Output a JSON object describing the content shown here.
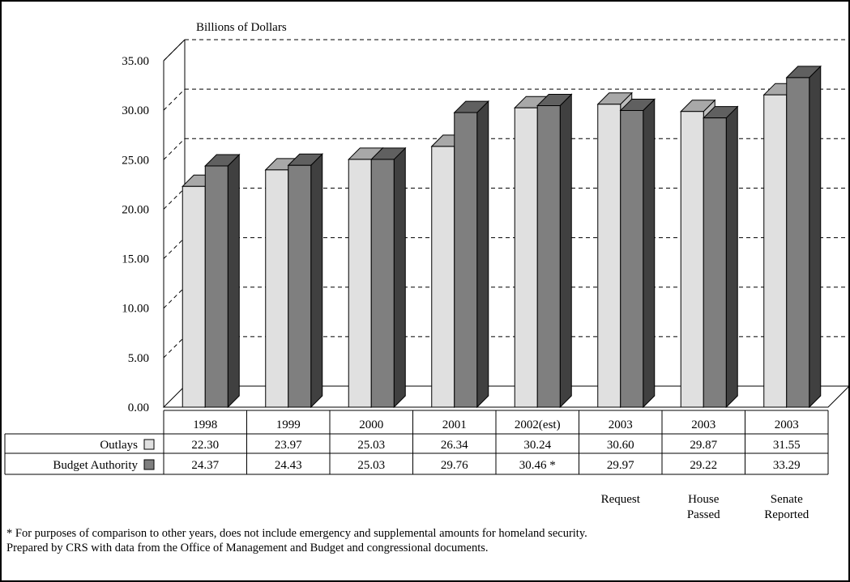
{
  "chart_data": {
    "type": "bar",
    "title": "",
    "ylabel": "Billions of Dollars",
    "xlabel": "",
    "ylim": [
      0,
      35
    ],
    "yticks": [
      "0.00",
      "5.00",
      "10.00",
      "15.00",
      "20.00",
      "25.00",
      "30.00",
      "35.00"
    ],
    "grid": true,
    "three_d": true,
    "categories": [
      "1998",
      "1999",
      "2000",
      "2001",
      "2002(est)",
      "2003",
      "2003",
      "2003"
    ],
    "sublabels": [
      "",
      "",
      "",
      "",
      "",
      "Request",
      "House\nPassed",
      "Senate\nReported"
    ],
    "series": [
      {
        "name": "Outlays",
        "values": [
          22.3,
          23.97,
          25.03,
          26.34,
          30.24,
          30.6,
          29.87,
          31.55
        ],
        "labels": [
          "22.30",
          "23.97",
          "25.03",
          "26.34",
          "30.24",
          "30.60",
          "29.87",
          "31.55"
        ],
        "color": "#e0e0e0"
      },
      {
        "name": "Budget Authority",
        "values": [
          24.37,
          24.43,
          25.03,
          29.76,
          30.46,
          29.97,
          29.22,
          33.29
        ],
        "labels": [
          "24.37",
          "24.43",
          "25.03",
          "29.76",
          "30.46 *",
          "29.97",
          "29.22",
          "33.29"
        ],
        "color": "#7f7f7f"
      }
    ]
  },
  "footnotes": [
    "* For purposes of comparison to other years, does not include emergency and supplemental amounts for homeland security.",
    "Prepared by CRS with data from the Office of Management and Budget and congressional documents."
  ]
}
